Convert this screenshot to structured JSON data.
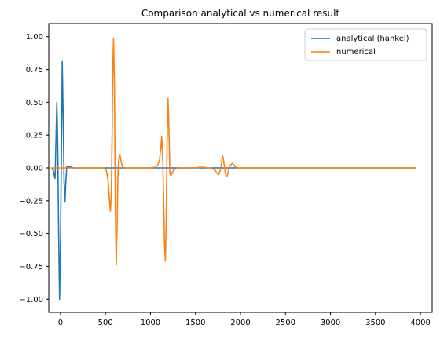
{
  "chart_data": {
    "type": "line",
    "title": "Comparison analytical vs numerical result",
    "xlabel": "",
    "ylabel": "",
    "xlim": [
      -130,
      4130
    ],
    "ylim": [
      -1.1,
      1.1
    ],
    "xticks": [
      0,
      500,
      1000,
      1500,
      2000,
      2500,
      3000,
      3500,
      4000
    ],
    "yticks": [
      -1.0,
      -0.75,
      -0.5,
      -0.25,
      0.0,
      0.25,
      0.5,
      0.75,
      1.0
    ],
    "xtick_labels": [
      "0",
      "500",
      "1000",
      "1500",
      "2000",
      "2500",
      "3000",
      "3500",
      "4000"
    ],
    "ytick_labels": [
      "−1.00",
      "−0.75",
      "−0.50",
      "−0.25",
      "0.00",
      "0.25",
      "0.50",
      "0.75",
      "1.00"
    ],
    "grid": false,
    "legend_position": "top-right",
    "series": [
      {
        "name": "analytical (hankel)",
        "color": "#1f77b4",
        "x": [
          -100,
          -80,
          -70,
          -60,
          -50,
          -40,
          -30,
          -20,
          -10,
          0,
          10,
          20,
          30,
          40,
          50,
          60,
          70,
          80,
          90,
          100,
          120,
          150,
          200,
          300,
          500,
          1000,
          1500,
          2000,
          2500,
          3000,
          3500,
          3940
        ],
        "y": [
          0.0,
          -0.02,
          -0.05,
          -0.08,
          0.2,
          0.5,
          0.15,
          -0.5,
          -1.0,
          -0.6,
          0.1,
          0.81,
          0.4,
          -0.1,
          -0.26,
          -0.1,
          0.01,
          0.01,
          0.0,
          0.01,
          0.005,
          0.0,
          0.0,
          0.0,
          0.0,
          0.0,
          0.0,
          0.0,
          0.0,
          0.0,
          0.0,
          0.0
        ]
      },
      {
        "name": "numerical",
        "color": "#ff7f0e",
        "x": [
          -100,
          0,
          400,
          480,
          510,
          530,
          545,
          555,
          565,
          575,
          580,
          590,
          600,
          610,
          620,
          630,
          640,
          650,
          660,
          670,
          680,
          690,
          700,
          720,
          760,
          800,
          900,
          1000,
          1050,
          1080,
          1100,
          1115,
          1125,
          1135,
          1145,
          1155,
          1165,
          1175,
          1185,
          1195,
          1205,
          1215,
          1225,
          1235,
          1245,
          1260,
          1290,
          1320,
          1400,
          1500,
          1550,
          1600,
          1650,
          1700,
          1720,
          1740,
          1760,
          1780,
          1790,
          1800,
          1810,
          1820,
          1830,
          1840,
          1850,
          1860,
          1870,
          1880,
          1890,
          1900,
          1910,
          1920,
          1930,
          1940,
          1960,
          2000,
          2100,
          2500,
          3000,
          3500,
          3940
        ],
        "y": [
          0.0,
          0.0,
          0.0,
          0.0,
          -0.02,
          -0.1,
          -0.25,
          -0.33,
          -0.2,
          0.3,
          0.7,
          0.99,
          0.6,
          -0.3,
          -0.74,
          -0.4,
          0.0,
          0.08,
          0.1,
          0.06,
          0.03,
          0.01,
          0.005,
          0.0,
          0.0,
          0.0,
          0.0,
          0.0,
          0.005,
          0.02,
          0.06,
          0.15,
          0.24,
          0.1,
          -0.2,
          -0.55,
          -0.71,
          -0.4,
          0.2,
          0.53,
          0.3,
          -0.03,
          -0.06,
          -0.05,
          -0.03,
          -0.015,
          -0.005,
          0.0,
          0.0,
          0.0,
          0.005,
          0.005,
          0.0,
          -0.01,
          -0.02,
          -0.04,
          -0.05,
          -0.01,
          0.04,
          0.095,
          0.07,
          0.02,
          -0.03,
          -0.06,
          -0.065,
          -0.04,
          -0.01,
          0.01,
          0.02,
          0.03,
          0.035,
          0.03,
          0.02,
          0.01,
          0.0,
          0.0,
          0.0,
          0.0,
          0.0,
          0.0,
          0.0
        ]
      }
    ]
  }
}
